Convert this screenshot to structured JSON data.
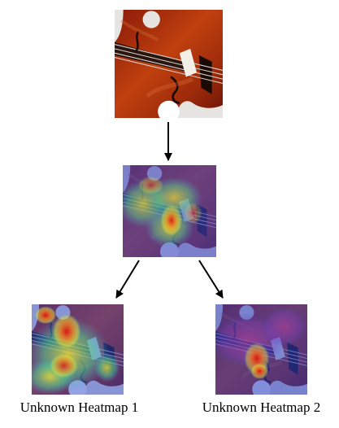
{
  "captions": {
    "left": "Unknown Heatmap 1",
    "right": "Unknown Heatmap 2"
  },
  "panels": {
    "top": "violin-photo",
    "middle": "violin-attention-heatmap",
    "left": "violin-unknown-heatmap-1",
    "right": "violin-unknown-heatmap-2"
  },
  "colors": {
    "arrow": "#000000",
    "heat_high": "#e02010",
    "heat_mid": "#f0d020",
    "heat_low": "#2040c0"
  }
}
